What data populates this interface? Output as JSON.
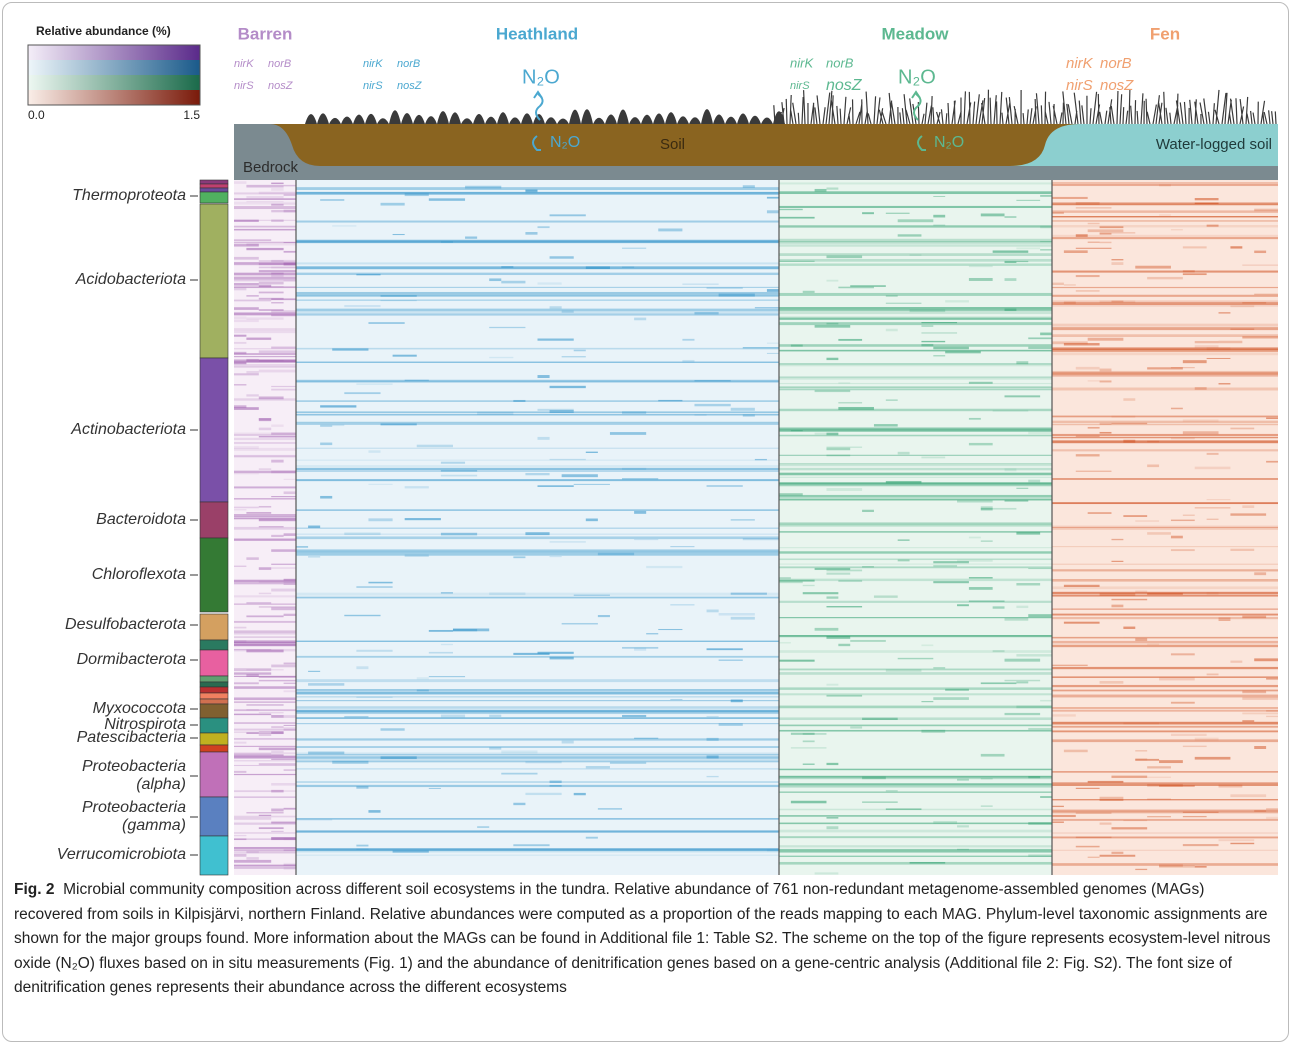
{
  "legend": {
    "title": "Relative abundance (%)",
    "min_label": "0.0",
    "max_label": "1.5"
  },
  "ecosystems": [
    {
      "name": "Barren",
      "genes": [
        "nirK",
        "norB",
        "nirS",
        "nosZ"
      ]
    },
    {
      "name": "Heathland",
      "genes": [
        "nirK",
        "norB",
        "nirS",
        "nosZ"
      ]
    },
    {
      "name": "Meadow",
      "genes": [
        "nirK",
        "norB",
        "nirS",
        "nosZ"
      ]
    },
    {
      "name": "Fen",
      "genes": [
        "nirK",
        "norB",
        "nirS",
        "nosZ"
      ]
    }
  ],
  "flux_labels": [
    "N₂O",
    "N₂O",
    "N₂O",
    "N₂O"
  ],
  "soil_labels": {
    "bedrock": "Bedrock",
    "soil": "Soil",
    "water_logged": "Water-logged soil"
  },
  "phyla": [
    [
      "Thermoproteota"
    ],
    [
      "Acidobacteriota"
    ],
    [
      "Actinobacteriota"
    ],
    [
      "Bacteroidota"
    ],
    [
      "Chloroflexota"
    ],
    [
      "Desulfobacterota"
    ],
    [
      "Dormibacterota"
    ],
    [
      "Myxococcota"
    ],
    [
      "Nitrospirota"
    ],
    [
      "Patescibacteria"
    ],
    [
      "Proteobacteria",
      "(alpha)"
    ],
    [
      "Proteobacteria",
      "(gamma)"
    ],
    [
      "Verrucomicrobiota"
    ]
  ],
  "caption": {
    "label": "Fig. 2",
    "text": "Microbial community composition across different soil ecosystems in the tundra. Relative abundance of 761 non-redundant metagenome-assembled genomes (MAGs) recovered from soils in Kilpisjärvi, northern Finland. Relative abundances were computed as a proportion of the reads mapping to each MAG. Phylum-level taxonomic assignments are shown for the major groups found. More information about the MAGs can be found in Additional file 1: Table S2. The scheme on the top of the figure represents ecosystem-level nitrous oxide (N₂O) fluxes based on in situ measurements (Fig. 1) and the abundance of denitrification genes based on a gene-centric analysis (Additional file 2: Fig. S2). The font size of denitrification genes represents their abundance across the different ecosystems"
  }
}
